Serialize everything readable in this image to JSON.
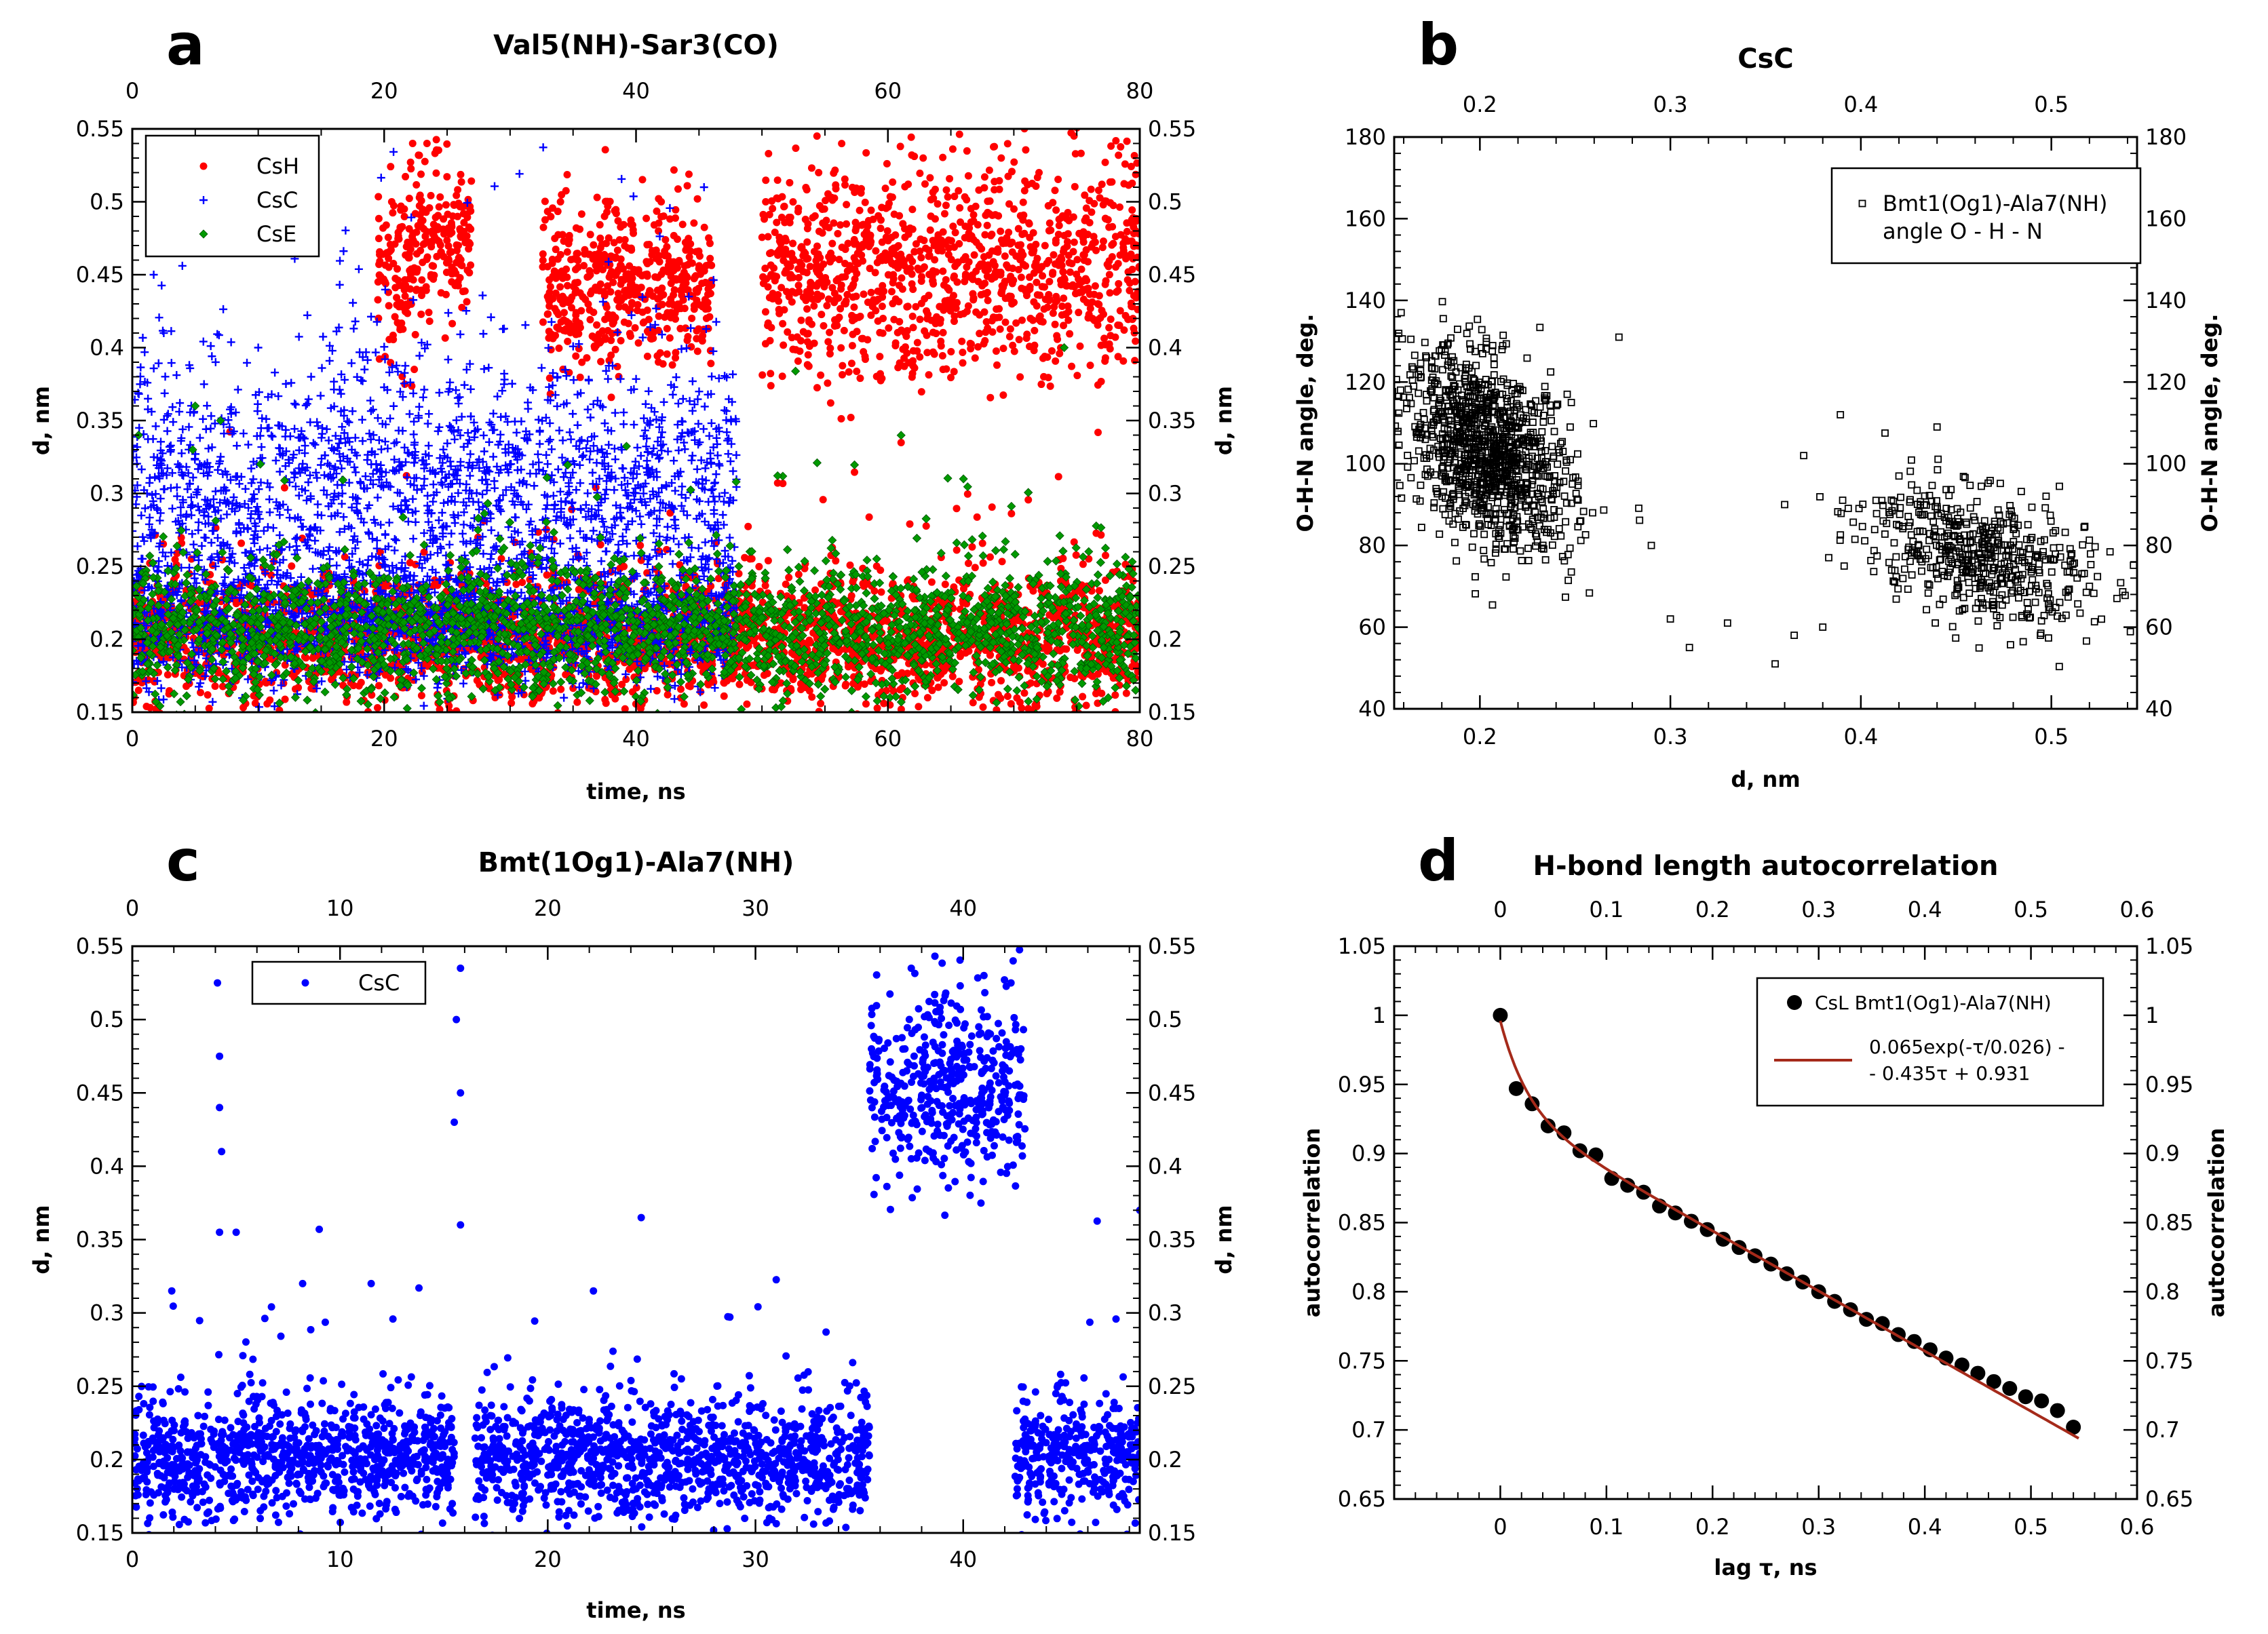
{
  "chart_data": [
    {
      "panel": "a",
      "type": "scatter",
      "title": "Val5(NH)-Sar3(CO)",
      "xlabel": "time, ns",
      "ylabel": "d, nm",
      "xlim": [
        0,
        80
      ],
      "ylim": [
        0.15,
        0.55
      ],
      "xticks": [
        "0",
        "20",
        "40",
        "60",
        "80"
      ],
      "yticks": [
        "0.15",
        "0.2",
        "0.25",
        "0.3",
        "0.35",
        "0.4",
        "0.45",
        "0.5",
        "0.55"
      ],
      "legend_position": "top-left",
      "series": [
        {
          "name": "CsH",
          "color": "#ff0000",
          "marker": "circle",
          "segments": [
            [
              0,
              80,
              0.2,
              0.022
            ],
            [
              19.5,
              22.5,
              0.45,
              0.03
            ],
            [
              22.5,
              27,
              0.47,
              0.025
            ],
            [
              32.5,
              46,
              0.44,
              0.028
            ],
            [
              50,
              80,
              0.45,
              0.035
            ]
          ],
          "sampled": [
            [
              20.6,
              0.5
            ],
            [
              23.4,
              0.54
            ],
            [
              34,
              0.5
            ],
            [
              37.5,
              0.49
            ],
            [
              42,
              0.5
            ],
            [
              50.3,
              0.5
            ],
            [
              54.5,
              0.52
            ],
            [
              62.8,
              0.53
            ],
            [
              69,
              0.53
            ],
            [
              72,
              0.52
            ],
            [
              0.5,
              0.165
            ],
            [
              47,
              0.17
            ],
            [
              62,
              0.17
            ]
          ]
        },
        {
          "name": "CsC",
          "color": "#0000ff",
          "marker": "plus",
          "segments": [
            [
              0,
              48,
              0.3,
              0.045
            ],
            [
              0,
              48,
              0.21,
              0.02
            ]
          ],
          "sampled": [
            [
              1.7,
              0.45
            ],
            [
              2.5,
              0.41
            ],
            [
              45.4,
              0.51
            ],
            [
              10,
              0.4
            ],
            [
              14.2,
              0.38
            ]
          ]
        },
        {
          "name": "CsE",
          "color": "#009900",
          "marker": "diamond",
          "segments": [
            [
              0,
              80,
              0.205,
              0.022
            ]
          ],
          "sampled": [
            [
              0.5,
              0.34
            ],
            [
              4.8,
              0.33
            ],
            [
              5,
              0.36
            ],
            [
              7,
              0.35
            ],
            [
              74,
              0.4
            ],
            [
              77.5,
              0.16
            ],
            [
              66,
              0.31
            ]
          ]
        }
      ]
    },
    {
      "panel": "b",
      "type": "scatter",
      "title": "CsC",
      "xlabel": "d, nm",
      "ylabel": "O-H-N angle, deg.",
      "xlim": [
        0.155,
        0.545
      ],
      "ylim": [
        40,
        180
      ],
      "xticks": [
        "0.2",
        "0.3",
        "0.4",
        "0.5"
      ],
      "yticks": [
        "40",
        "60",
        "80",
        "100",
        "120",
        "140",
        "160",
        "180"
      ],
      "legend": [
        "Bmt1(Og1)-Ala7(NH)",
        "angle O - H - N"
      ],
      "legend_position": "top-right",
      "series": [
        {
          "name": "Bmt1(Og1)-Ala7(NH) angle O - H - N",
          "color": "#000000",
          "marker": "open-square",
          "clusters": [
            [
              0.205,
              103,
              0.022,
              11,
              1100
            ],
            [
              0.46,
              78,
              0.03,
              8,
              520
            ]
          ],
          "sampled": [
            [
              0.273,
              131
            ],
            [
              0.248,
              115
            ],
            [
              0.29,
              80
            ],
            [
              0.3,
              62
            ],
            [
              0.31,
              55
            ],
            [
              0.33,
              61
            ],
            [
              0.355,
              51
            ],
            [
              0.36,
              90
            ],
            [
              0.37,
              102
            ],
            [
              0.365,
              58
            ],
            [
              0.38,
              60
            ],
            [
              0.42,
              97
            ],
            [
              0.44,
              109
            ],
            [
              0.52,
              70
            ]
          ]
        }
      ]
    },
    {
      "panel": "c",
      "type": "scatter",
      "title": "Bmt(1Og1)-Ala7(NH)",
      "xlabel": "time, ns",
      "ylabel": "d, nm",
      "xlim": [
        0,
        48.5
      ],
      "ylim": [
        0.15,
        0.55
      ],
      "xticks": [
        "0",
        "10",
        "20",
        "30",
        "40"
      ],
      "yticks": [
        "0.15",
        "0.2",
        "0.25",
        "0.3",
        "0.35",
        "0.4",
        "0.45",
        "0.5",
        "0.55"
      ],
      "legend_position": "top-left",
      "series": [
        {
          "name": "CsC",
          "color": "#0000ff",
          "marker": "circle",
          "segments": [
            [
              0,
              15.5,
              0.2,
              0.02
            ],
            [
              16.5,
              35.5,
              0.2,
              0.02
            ],
            [
              35.5,
              43,
              0.45,
              0.03
            ],
            [
              42.5,
              48.5,
              0.2,
              0.02
            ]
          ],
          "sampled": [
            [
              4.1,
              0.525
            ],
            [
              4.2,
              0.475
            ],
            [
              4.2,
              0.44
            ],
            [
              4.3,
              0.41
            ],
            [
              4.2,
              0.355
            ],
            [
              5,
              0.355
            ],
            [
              15.8,
              0.535
            ],
            [
              15.6,
              0.5
            ],
            [
              15.8,
              0.45
            ],
            [
              15.5,
              0.43
            ],
            [
              15.8,
              0.36
            ],
            [
              24.5,
              0.365
            ],
            [
              37.5,
              0.535
            ],
            [
              41,
              0.53
            ],
            [
              42.3,
              0.525
            ],
            [
              48.5,
              0.37
            ],
            [
              9,
              0.357
            ],
            [
              1.9,
              0.315
            ],
            [
              8.2,
              0.32
            ],
            [
              11.5,
              0.32
            ],
            [
              13.8,
              0.317
            ],
            [
              22.2,
              0.315
            ]
          ]
        }
      ]
    },
    {
      "panel": "d",
      "type": "scatter",
      "title": "H-bond length autocorrelation",
      "xlabel": "lag τ, ns",
      "ylabel": "autocorrelation",
      "xlim": [
        -0.1,
        0.6
      ],
      "ylim": [
        0.65,
        1.05
      ],
      "xticks": [
        "0",
        "0.1",
        "0.2",
        "0.3",
        "0.4",
        "0.5",
        "0.6"
      ],
      "yticks": [
        "0.65",
        "0.7",
        "0.75",
        "0.8",
        "0.85",
        "0.9",
        "0.95",
        "1",
        "1.05"
      ],
      "legend_position": "top-right",
      "series": [
        {
          "name": "CsL Bmt1(Og1)-Ala7(NH)",
          "color": "#000000",
          "marker": "filled-circle",
          "x": [
            0,
            0.015,
            0.03,
            0.045,
            0.06,
            0.075,
            0.09,
            0.105,
            0.12,
            0.135,
            0.15,
            0.165,
            0.18,
            0.195,
            0.21,
            0.225,
            0.24,
            0.255,
            0.27,
            0.285,
            0.3,
            0.315,
            0.33,
            0.345,
            0.36,
            0.375,
            0.39,
            0.405,
            0.42,
            0.435,
            0.45,
            0.465,
            0.48,
            0.495,
            0.51,
            0.525,
            0.54
          ],
          "y": [
            1.0,
            0.947,
            0.936,
            0.92,
            0.915,
            0.902,
            0.899,
            0.882,
            0.877,
            0.872,
            0.862,
            0.857,
            0.851,
            0.845,
            0.838,
            0.832,
            0.826,
            0.82,
            0.813,
            0.807,
            0.8,
            0.793,
            0.787,
            0.78,
            0.777,
            0.769,
            0.764,
            0.758,
            0.752,
            0.747,
            0.741,
            0.735,
            0.73,
            0.724,
            0.721,
            0.714,
            0.702
          ]
        },
        {
          "name": "0.065exp(-τ/0.026) - - 0.435τ + 0.931",
          "legend_lines": [
            "0.065exp(-τ/0.026) -",
            "- 0.435τ + 0.931"
          ],
          "color": "#a52a1a",
          "marker": "line",
          "function": {
            "a": 0.065,
            "tau": 0.026,
            "slope": -0.435,
            "intercept": 0.931
          },
          "x_range": [
            0,
            0.545
          ]
        }
      ]
    }
  ]
}
